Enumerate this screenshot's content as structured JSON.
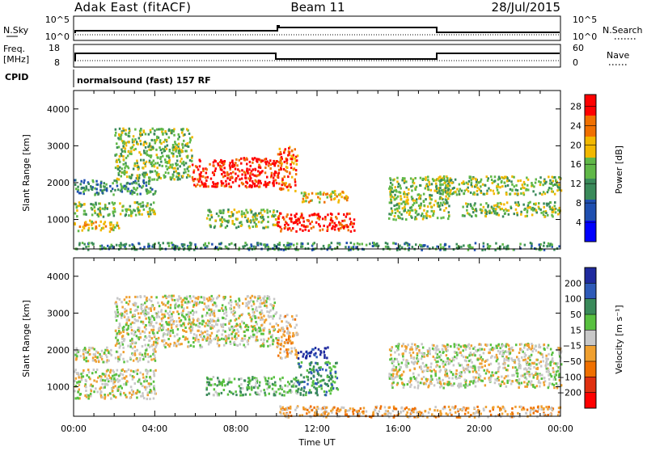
{
  "header": {
    "station": "Adak East (fitACF)",
    "beam": "Beam 11",
    "date": "28/Jul/2015"
  },
  "strips": {
    "nsky_label": "N.Sky",
    "nsearch_label": "N.Search",
    "left_ticks": [
      "10^5",
      "10^0"
    ],
    "right_ticks": [
      "10^5",
      "10^0"
    ],
    "freq_label_1": "Freq.",
    "freq_label_2": "[MHz]",
    "freq_ticks": [
      "18",
      "8"
    ],
    "nave_label": "Nave",
    "nave_ticks": [
      "60",
      "0"
    ],
    "cpid_label": "CPID",
    "cpid_text": "normalsound (fast) 157 RF"
  },
  "chart_data": [
    {
      "type": "heatmap",
      "name": "power",
      "ylabel": "Slant Range [km]",
      "xlabel": "",
      "xlim": [
        0,
        24
      ],
      "ylim": [
        200,
        4500
      ],
      "x_ticks": [
        "00:00",
        "04:00",
        "08:00",
        "12:00",
        "16:00",
        "20:00",
        "00:00"
      ],
      "y_ticks": [
        1000,
        2000,
        3000,
        4000
      ],
      "colorbar_label": "Power [dB]",
      "colorbar_ticks": [
        "4",
        "8",
        "12",
        "16",
        "20",
        "24",
        "28"
      ],
      "colors": [
        "#0000ff",
        "#1f4fb0",
        "#3a8a5a",
        "#60b848",
        "#f2b800",
        "#f07000",
        "#ff0000"
      ],
      "regions": [
        {
          "x": [
            0.0,
            2.2
          ],
          "y": [
            700,
            1000
          ],
          "level": 4
        },
        {
          "x": [
            0.0,
            4.0
          ],
          "y": [
            1100,
            1500
          ],
          "level": 3
        },
        {
          "x": [
            0.0,
            4.0
          ],
          "y": [
            1700,
            2100
          ],
          "level": 2
        },
        {
          "x": [
            2.0,
            5.8
          ],
          "y": [
            2100,
            3500
          ],
          "level": 3
        },
        {
          "x": [
            5.8,
            10.0
          ],
          "y": [
            1900,
            2700
          ],
          "level": 6
        },
        {
          "x": [
            10.0,
            11.0
          ],
          "y": [
            1800,
            3000
          ],
          "level": 5
        },
        {
          "x": [
            11.0,
            13.5
          ],
          "y": [
            1500,
            1800
          ],
          "level": 4
        },
        {
          "x": [
            6.5,
            10.0
          ],
          "y": [
            800,
            1300
          ],
          "level": 3
        },
        {
          "x": [
            10.0,
            13.8
          ],
          "y": [
            700,
            1200
          ],
          "level": 6
        },
        {
          "x": [
            15.5,
            18.5
          ],
          "y": [
            1000,
            2200
          ],
          "level": 3
        },
        {
          "x": [
            18.0,
            24.0
          ],
          "y": [
            1700,
            2200
          ],
          "level": 3
        },
        {
          "x": [
            19.0,
            24.0
          ],
          "y": [
            1100,
            1500
          ],
          "level": 3
        },
        {
          "x": [
            0.0,
            24.0
          ],
          "y": [
            200,
            400
          ],
          "level": 2
        }
      ]
    },
    {
      "type": "heatmap",
      "name": "velocity",
      "ylabel": "Slant Range [km]",
      "xlabel": "Time UT",
      "xlim": [
        0,
        24
      ],
      "ylim": [
        200,
        4500
      ],
      "x_ticks": [
        "00:00",
        "04:00",
        "08:00",
        "12:00",
        "16:00",
        "20:00",
        "00:00"
      ],
      "y_ticks": [
        1000,
        2000,
        3000,
        4000
      ],
      "colorbar_label": "Velocity [m s⁻¹]",
      "colorbar_ticks": [
        "200",
        "100",
        "50",
        "15",
        "−15",
        "−50",
        "−100",
        "−200"
      ],
      "colors": [
        "#1f2a9e",
        "#2e5ab8",
        "#3a8a5a",
        "#58c040",
        "#c8c8c8",
        "#f0a030",
        "#f07000",
        "#e03010",
        "#ff0000"
      ],
      "regions": [
        {
          "x": [
            0.0,
            4.0
          ],
          "y": [
            700,
            1500
          ],
          "level": 4
        },
        {
          "x": [
            0.0,
            4.0
          ],
          "y": [
            1700,
            2100
          ],
          "level": 4
        },
        {
          "x": [
            2.0,
            10.0
          ],
          "y": [
            2100,
            3500
          ],
          "level": 4
        },
        {
          "x": [
            10.0,
            11.0
          ],
          "y": [
            1800,
            3000
          ],
          "level": 5
        },
        {
          "x": [
            11.0,
            12.5
          ],
          "y": [
            1800,
            2100
          ],
          "level": 0
        },
        {
          "x": [
            6.5,
            11.0
          ],
          "y": [
            800,
            1300
          ],
          "level": 3
        },
        {
          "x": [
            11.0,
            13.0
          ],
          "y": [
            800,
            1700
          ],
          "level": 2
        },
        {
          "x": [
            15.5,
            24.0
          ],
          "y": [
            1000,
            2200
          ],
          "level": 4
        },
        {
          "x": [
            10.0,
            24.0
          ],
          "y": [
            200,
            500
          ],
          "level": 5
        }
      ]
    }
  ]
}
